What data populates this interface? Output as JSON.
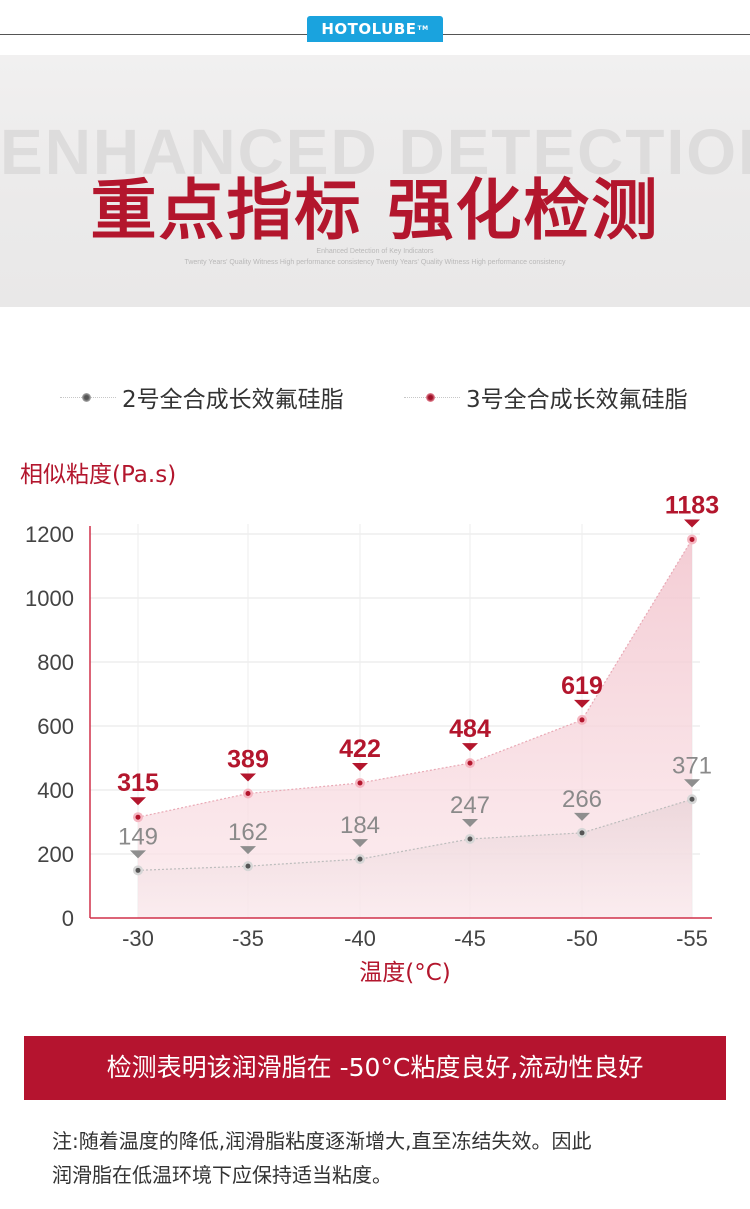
{
  "brand": {
    "logo": "HOTOLUBE",
    "tm": "TM"
  },
  "banner": {
    "en_title": "ENHANCED DETECTION",
    "cn_title": "重点指标 强化检测",
    "sub1": "Enhanced Detection of Key Indicators",
    "sub2": "Twenty Years' Quality Witness High performance consistency Twenty Years' Quality Witness High performance consistency"
  },
  "colors": {
    "series_gray": "#8a8a8a",
    "series_red": "#c81e3a",
    "accent": "#b3162d"
  },
  "chart_data": {
    "type": "area",
    "ylabel": "相似粘度(Pa.s)",
    "xlabel": "温度(°C)",
    "x": [
      "-30",
      "-35",
      "-40",
      "-45",
      "-50",
      "-55"
    ],
    "ylim": [
      0,
      1200
    ],
    "yticks": [
      0,
      200,
      400,
      600,
      800,
      1000,
      1200
    ],
    "grid": true,
    "legend": "top",
    "series": [
      {
        "name": "2号全合成长效氟硅脂",
        "values": [
          149,
          162,
          184,
          247,
          266,
          371
        ],
        "color": "#8a8a8a"
      },
      {
        "name": "3号全合成长效氟硅脂",
        "values": [
          315,
          389,
          422,
          484,
          619,
          1183
        ],
        "color": "#c81e3a"
      }
    ]
  },
  "conclusion": "检测表明该润滑脂在 -50°C粘度良好,流动性良好",
  "note_line1": "注:随着温度的降低,润滑脂粘度逐渐增大,直至冻结失效。因此",
  "note_line2": "润滑脂在低温环境下应保持适当粘度。"
}
